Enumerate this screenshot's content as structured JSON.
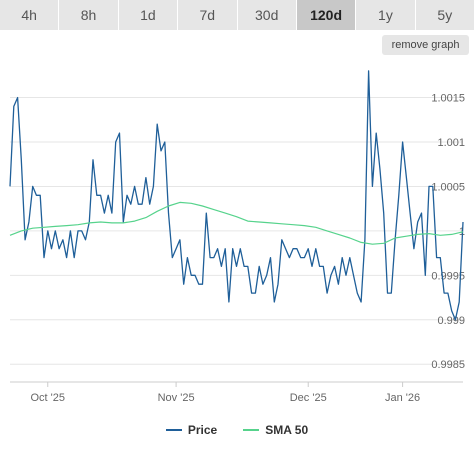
{
  "tabs": [
    {
      "label": "4h"
    },
    {
      "label": "8h"
    },
    {
      "label": "1d"
    },
    {
      "label": "7d"
    },
    {
      "label": "30d"
    },
    {
      "label": "120d",
      "active": true
    },
    {
      "label": "1y"
    },
    {
      "label": "5y"
    }
  ],
  "remove_graph_label": "remove graph",
  "colors": {
    "price": "#1f5f99",
    "sma": "#56d38c",
    "grid": "#e6e6e6"
  },
  "chart_data": {
    "type": "line",
    "x_ticks": [
      "Oct '25",
      "Nov '25",
      "Dec '25",
      "Jan '26"
    ],
    "y_ticks": [
      "0.9985",
      "0.999",
      "0.9995",
      "1",
      "1.0005",
      "1.001",
      "1.0015"
    ],
    "ylim": [
      0.9983,
      1.0019
    ],
    "xlim": [
      0,
      120
    ],
    "grid": true,
    "legend_placement": "bottom",
    "series": [
      {
        "name": "Price",
        "x": [
          0,
          1,
          2,
          3,
          4,
          5,
          6,
          7,
          8,
          9,
          10,
          11,
          12,
          13,
          14,
          15,
          16,
          17,
          18,
          19,
          20,
          21,
          22,
          23,
          24,
          25,
          26,
          27,
          28,
          29,
          30,
          31,
          32,
          33,
          34,
          35,
          36,
          37,
          38,
          39,
          40,
          41,
          42,
          43,
          44,
          45,
          46,
          47,
          48,
          49,
          50,
          51,
          52,
          53,
          54,
          55,
          56,
          57,
          58,
          59,
          60,
          61,
          62,
          63,
          64,
          65,
          66,
          67,
          68,
          69,
          70,
          71,
          72,
          73,
          74,
          75,
          76,
          77,
          78,
          79,
          80,
          81,
          82,
          83,
          84,
          85,
          86,
          87,
          88,
          89,
          90,
          91,
          92,
          93,
          94,
          95,
          96,
          97,
          98,
          99,
          100,
          101,
          102,
          103,
          104,
          105,
          106,
          107,
          108,
          109,
          110,
          111,
          112,
          113,
          114,
          115,
          116,
          117,
          118,
          119,
          120
        ],
        "values": [
          1.0005,
          1.0014,
          1.0015,
          1.0008,
          0.9999,
          1.0001,
          1.0005,
          1.0004,
          1.0004,
          0.9997,
          1.0,
          0.9998,
          1.0,
          0.9998,
          0.9999,
          0.9997,
          1.0,
          0.9997,
          1.0,
          1.0,
          0.9999,
          1.0001,
          1.0008,
          1.0004,
          1.0004,
          1.0002,
          1.0004,
          1.0002,
          1.001,
          1.0011,
          1.0001,
          1.0004,
          1.0003,
          1.0005,
          1.0003,
          1.0003,
          1.0006,
          1.0003,
          1.0005,
          1.0012,
          1.0009,
          1.001,
          1.0002,
          0.9997,
          0.9998,
          0.9999,
          0.9994,
          0.9997,
          0.9995,
          0.9995,
          0.9994,
          0.9994,
          1.0002,
          0.9997,
          0.9997,
          0.9998,
          0.9996,
          0.9998,
          0.9992,
          0.9998,
          0.9996,
          0.9998,
          0.9996,
          0.9996,
          0.9993,
          0.9993,
          0.9996,
          0.9994,
          0.9995,
          0.9997,
          0.9992,
          0.9994,
          0.9999,
          0.9998,
          0.9997,
          0.9998,
          0.9998,
          0.9997,
          0.9997,
          0.9998,
          0.9996,
          0.9998,
          0.9996,
          0.9996,
          0.9993,
          0.9995,
          0.9996,
          0.9994,
          0.9997,
          0.9995,
          0.9997,
          0.9995,
          0.9993,
          0.9992,
          0.9999,
          1.0018,
          1.0005,
          1.0011,
          1.0007,
          1.0002,
          0.9993,
          0.9993,
          0.9999,
          1.0004,
          1.001,
          1.0006,
          1.0002,
          0.9998,
          1.0001,
          1.0002,
          0.9995,
          1.0005,
          1.0005,
          0.9997,
          0.9997,
          0.9993,
          0.9993,
          0.9991,
          0.999,
          0.9992,
          1.0001
        ]
      },
      {
        "name": "SMA 50",
        "x": [
          0,
          3,
          6,
          9,
          12,
          15,
          18,
          21,
          24,
          27,
          30,
          33,
          36,
          39,
          42,
          45,
          48,
          51,
          54,
          57,
          60,
          63,
          66,
          69,
          72,
          75,
          78,
          81,
          84,
          87,
          90,
          93,
          96,
          99,
          102,
          105,
          108,
          111,
          114,
          117,
          120
        ],
        "values": [
          0.99995,
          1.0,
          1.00003,
          1.00004,
          1.00005,
          1.00006,
          1.00007,
          1.00009,
          1.0001,
          1.00009,
          1.00009,
          1.00011,
          1.00015,
          1.00022,
          1.00028,
          1.00032,
          1.00031,
          1.00028,
          1.00024,
          1.0002,
          1.00016,
          1.00011,
          1.0001,
          1.00009,
          1.00008,
          1.00007,
          1.00006,
          1.00004,
          1.0,
          0.99996,
          0.99992,
          0.99987,
          0.99985,
          0.99986,
          0.99992,
          0.99994,
          0.99996,
          0.99997,
          0.99995,
          0.99996,
          0.99999
        ]
      }
    ]
  }
}
